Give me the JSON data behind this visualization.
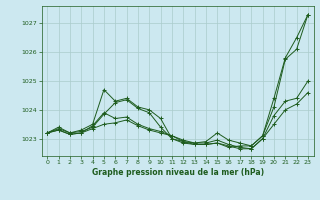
{
  "title": "Graphe pression niveau de la mer (hPa)",
  "background_color": "#cce8f0",
  "grid_color": "#aacccc",
  "line_color": "#1e5c1e",
  "xlim": [
    -0.5,
    23.5
  ],
  "ylim": [
    1022.4,
    1027.6
  ],
  "xticks": [
    0,
    1,
    2,
    3,
    4,
    5,
    6,
    7,
    8,
    9,
    10,
    11,
    12,
    13,
    14,
    15,
    16,
    17,
    18,
    19,
    20,
    21,
    22,
    23
  ],
  "yticks": [
    1023,
    1024,
    1025,
    1026,
    1027
  ],
  "series": [
    {
      "x": [
        0,
        1,
        2,
        3,
        4,
        5,
        6,
        7,
        8,
        9,
        10,
        11,
        12,
        13,
        14,
        15,
        16,
        17,
        18,
        19,
        20,
        21,
        22,
        23
      ],
      "y": [
        1023.2,
        1023.4,
        1023.2,
        1023.3,
        1023.5,
        1024.7,
        1024.3,
        1024.4,
        1024.1,
        1024.0,
        1023.7,
        1023.0,
        1022.9,
        1022.85,
        1022.9,
        1023.2,
        1022.95,
        1022.85,
        1022.75,
        1023.1,
        1024.4,
        1025.8,
        1026.5,
        1027.3
      ]
    },
    {
      "x": [
        0,
        1,
        2,
        3,
        4,
        5,
        6,
        7,
        8,
        9,
        10,
        11,
        12,
        13,
        14,
        15,
        16,
        17,
        18,
        19,
        20,
        21,
        22,
        23
      ],
      "y": [
        1023.2,
        1023.35,
        1023.2,
        1023.25,
        1023.4,
        1023.85,
        1024.25,
        1024.35,
        1024.05,
        1023.9,
        1023.4,
        1023.0,
        1022.85,
        1022.8,
        1022.8,
        1022.85,
        1022.7,
        1022.75,
        1022.75,
        1023.1,
        1024.1,
        1025.75,
        1026.1,
        1027.3
      ]
    },
    {
      "x": [
        0,
        1,
        2,
        3,
        4,
        5,
        6,
        7,
        8,
        9,
        10,
        11,
        12,
        13,
        14,
        15,
        16,
        17,
        18,
        19,
        20,
        21,
        22,
        23
      ],
      "y": [
        1023.2,
        1023.3,
        1023.15,
        1023.2,
        1023.45,
        1023.9,
        1023.7,
        1023.75,
        1023.5,
        1023.35,
        1023.25,
        1023.1,
        1022.95,
        1022.85,
        1022.85,
        1022.95,
        1022.8,
        1022.7,
        1022.65,
        1023.0,
        1023.8,
        1024.3,
        1024.4,
        1025.0
      ]
    },
    {
      "x": [
        0,
        1,
        2,
        3,
        4,
        5,
        6,
        7,
        8,
        9,
        10,
        11,
        12,
        13,
        14,
        15,
        16,
        17,
        18,
        19,
        20,
        21,
        22,
        23
      ],
      "y": [
        1023.2,
        1023.3,
        1023.15,
        1023.2,
        1023.35,
        1023.5,
        1023.55,
        1023.65,
        1023.45,
        1023.3,
        1023.2,
        1023.1,
        1022.9,
        1022.8,
        1022.8,
        1022.85,
        1022.75,
        1022.65,
        1022.65,
        1023.0,
        1023.5,
        1024.0,
        1024.2,
        1024.6
      ]
    }
  ]
}
